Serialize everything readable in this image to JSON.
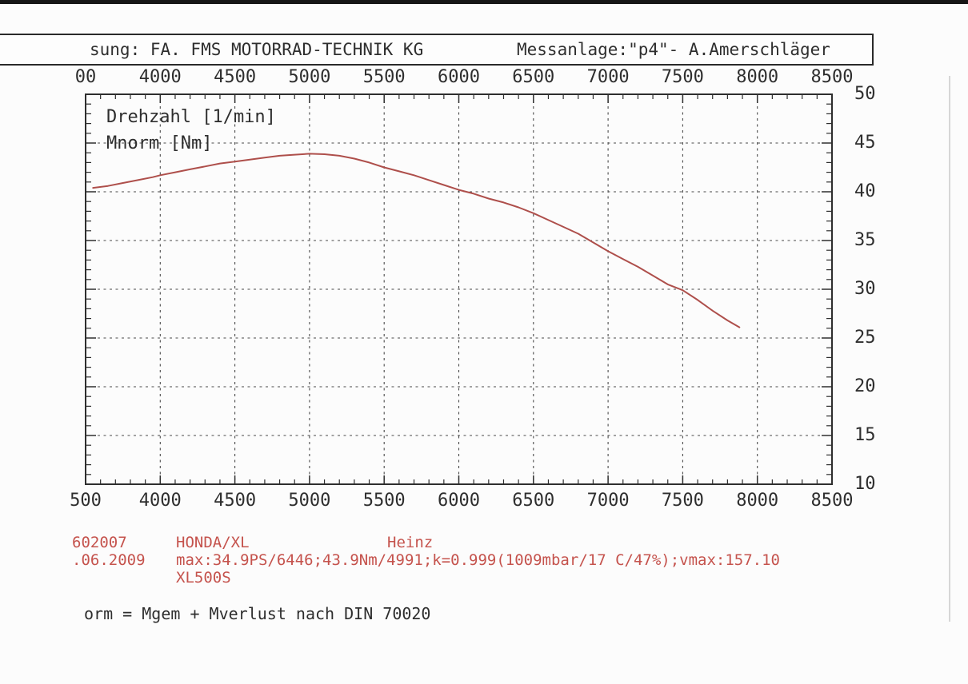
{
  "colors": {
    "ink": "#2e2e2e",
    "grid": "#4a4a4a",
    "curve": "#ae4f4b",
    "red_text": "#c5534d"
  },
  "header": {
    "left": "sung: FA. FMS MOTORRAD-TECHNIK KG",
    "right": "Messanlage:\"p4\"- A.Amerschläger"
  },
  "chart_data": {
    "type": "line",
    "title": "",
    "xlabel": "Drehzahl [1/min]",
    "ylabel": "Mnorm [Nm]",
    "xlim": [
      3500,
      8500
    ],
    "ylim": [
      10,
      50
    ],
    "grid": "dashed",
    "legend": "none",
    "x_minor_step": 100,
    "y_minor_step": 1,
    "x_tick_values": [
      3500,
      4000,
      4500,
      5000,
      5500,
      6000,
      6500,
      7000,
      7500,
      8000,
      8500
    ],
    "x_tick_labels_top": [
      "00",
      "4000",
      "4500",
      "5000",
      "5500",
      "6000",
      "6500",
      "7000",
      "7500",
      "8000",
      "8500"
    ],
    "x_tick_labels_bottom": [
      "500",
      "4000",
      "4500",
      "5000",
      "5500",
      "6000",
      "6500",
      "7000",
      "7500",
      "8000",
      "8500"
    ],
    "y_tick_values": [
      50,
      45,
      40,
      35,
      30,
      25,
      20,
      15,
      10
    ],
    "y_tick_labels": [
      "50",
      "45",
      "40",
      "35",
      "30",
      "25",
      "20",
      "15",
      "10"
    ],
    "series": [
      {
        "name": "Mnorm [Nm]",
        "color": "#ae4f4b",
        "points": [
          [
            3550,
            40.4
          ],
          [
            3650,
            40.6
          ],
          [
            3750,
            40.9
          ],
          [
            3850,
            41.2
          ],
          [
            3950,
            41.5
          ],
          [
            4000,
            41.7
          ],
          [
            4100,
            42.0
          ],
          [
            4200,
            42.3
          ],
          [
            4300,
            42.6
          ],
          [
            4400,
            42.9
          ],
          [
            4500,
            43.1
          ],
          [
            4600,
            43.3
          ],
          [
            4700,
            43.5
          ],
          [
            4800,
            43.7
          ],
          [
            4900,
            43.8
          ],
          [
            5000,
            43.9
          ],
          [
            5100,
            43.85
          ],
          [
            5200,
            43.7
          ],
          [
            5300,
            43.4
          ],
          [
            5400,
            43.0
          ],
          [
            5500,
            42.5
          ],
          [
            5600,
            42.1
          ],
          [
            5700,
            41.7
          ],
          [
            5800,
            41.2
          ],
          [
            5900,
            40.7
          ],
          [
            6000,
            40.2
          ],
          [
            6100,
            39.8
          ],
          [
            6200,
            39.3
          ],
          [
            6300,
            38.9
          ],
          [
            6400,
            38.4
          ],
          [
            6500,
            37.8
          ],
          [
            6600,
            37.1
          ],
          [
            6700,
            36.4
          ],
          [
            6800,
            35.7
          ],
          [
            6900,
            34.8
          ],
          [
            7000,
            33.9
          ],
          [
            7100,
            33.1
          ],
          [
            7200,
            32.3
          ],
          [
            7300,
            31.4
          ],
          [
            7400,
            30.5
          ],
          [
            7500,
            29.9
          ],
          [
            7600,
            28.9
          ],
          [
            7700,
            27.8
          ],
          [
            7800,
            26.8
          ],
          [
            7880,
            26.1
          ]
        ]
      }
    ]
  },
  "annotations": {
    "test_number": "602007",
    "vehicle_model": "HONDA/XL",
    "operator": "Heinz",
    "test_date": ".06.2009",
    "max_values": "max:34.9PS/6446;43.9Nm/4991;k=0.999(1009mbar/17 C/47%);vmax:157.10",
    "vehicle_type": "XL500S",
    "formula_note": "orm = Mgem + Mverlust nach DIN 70020"
  }
}
